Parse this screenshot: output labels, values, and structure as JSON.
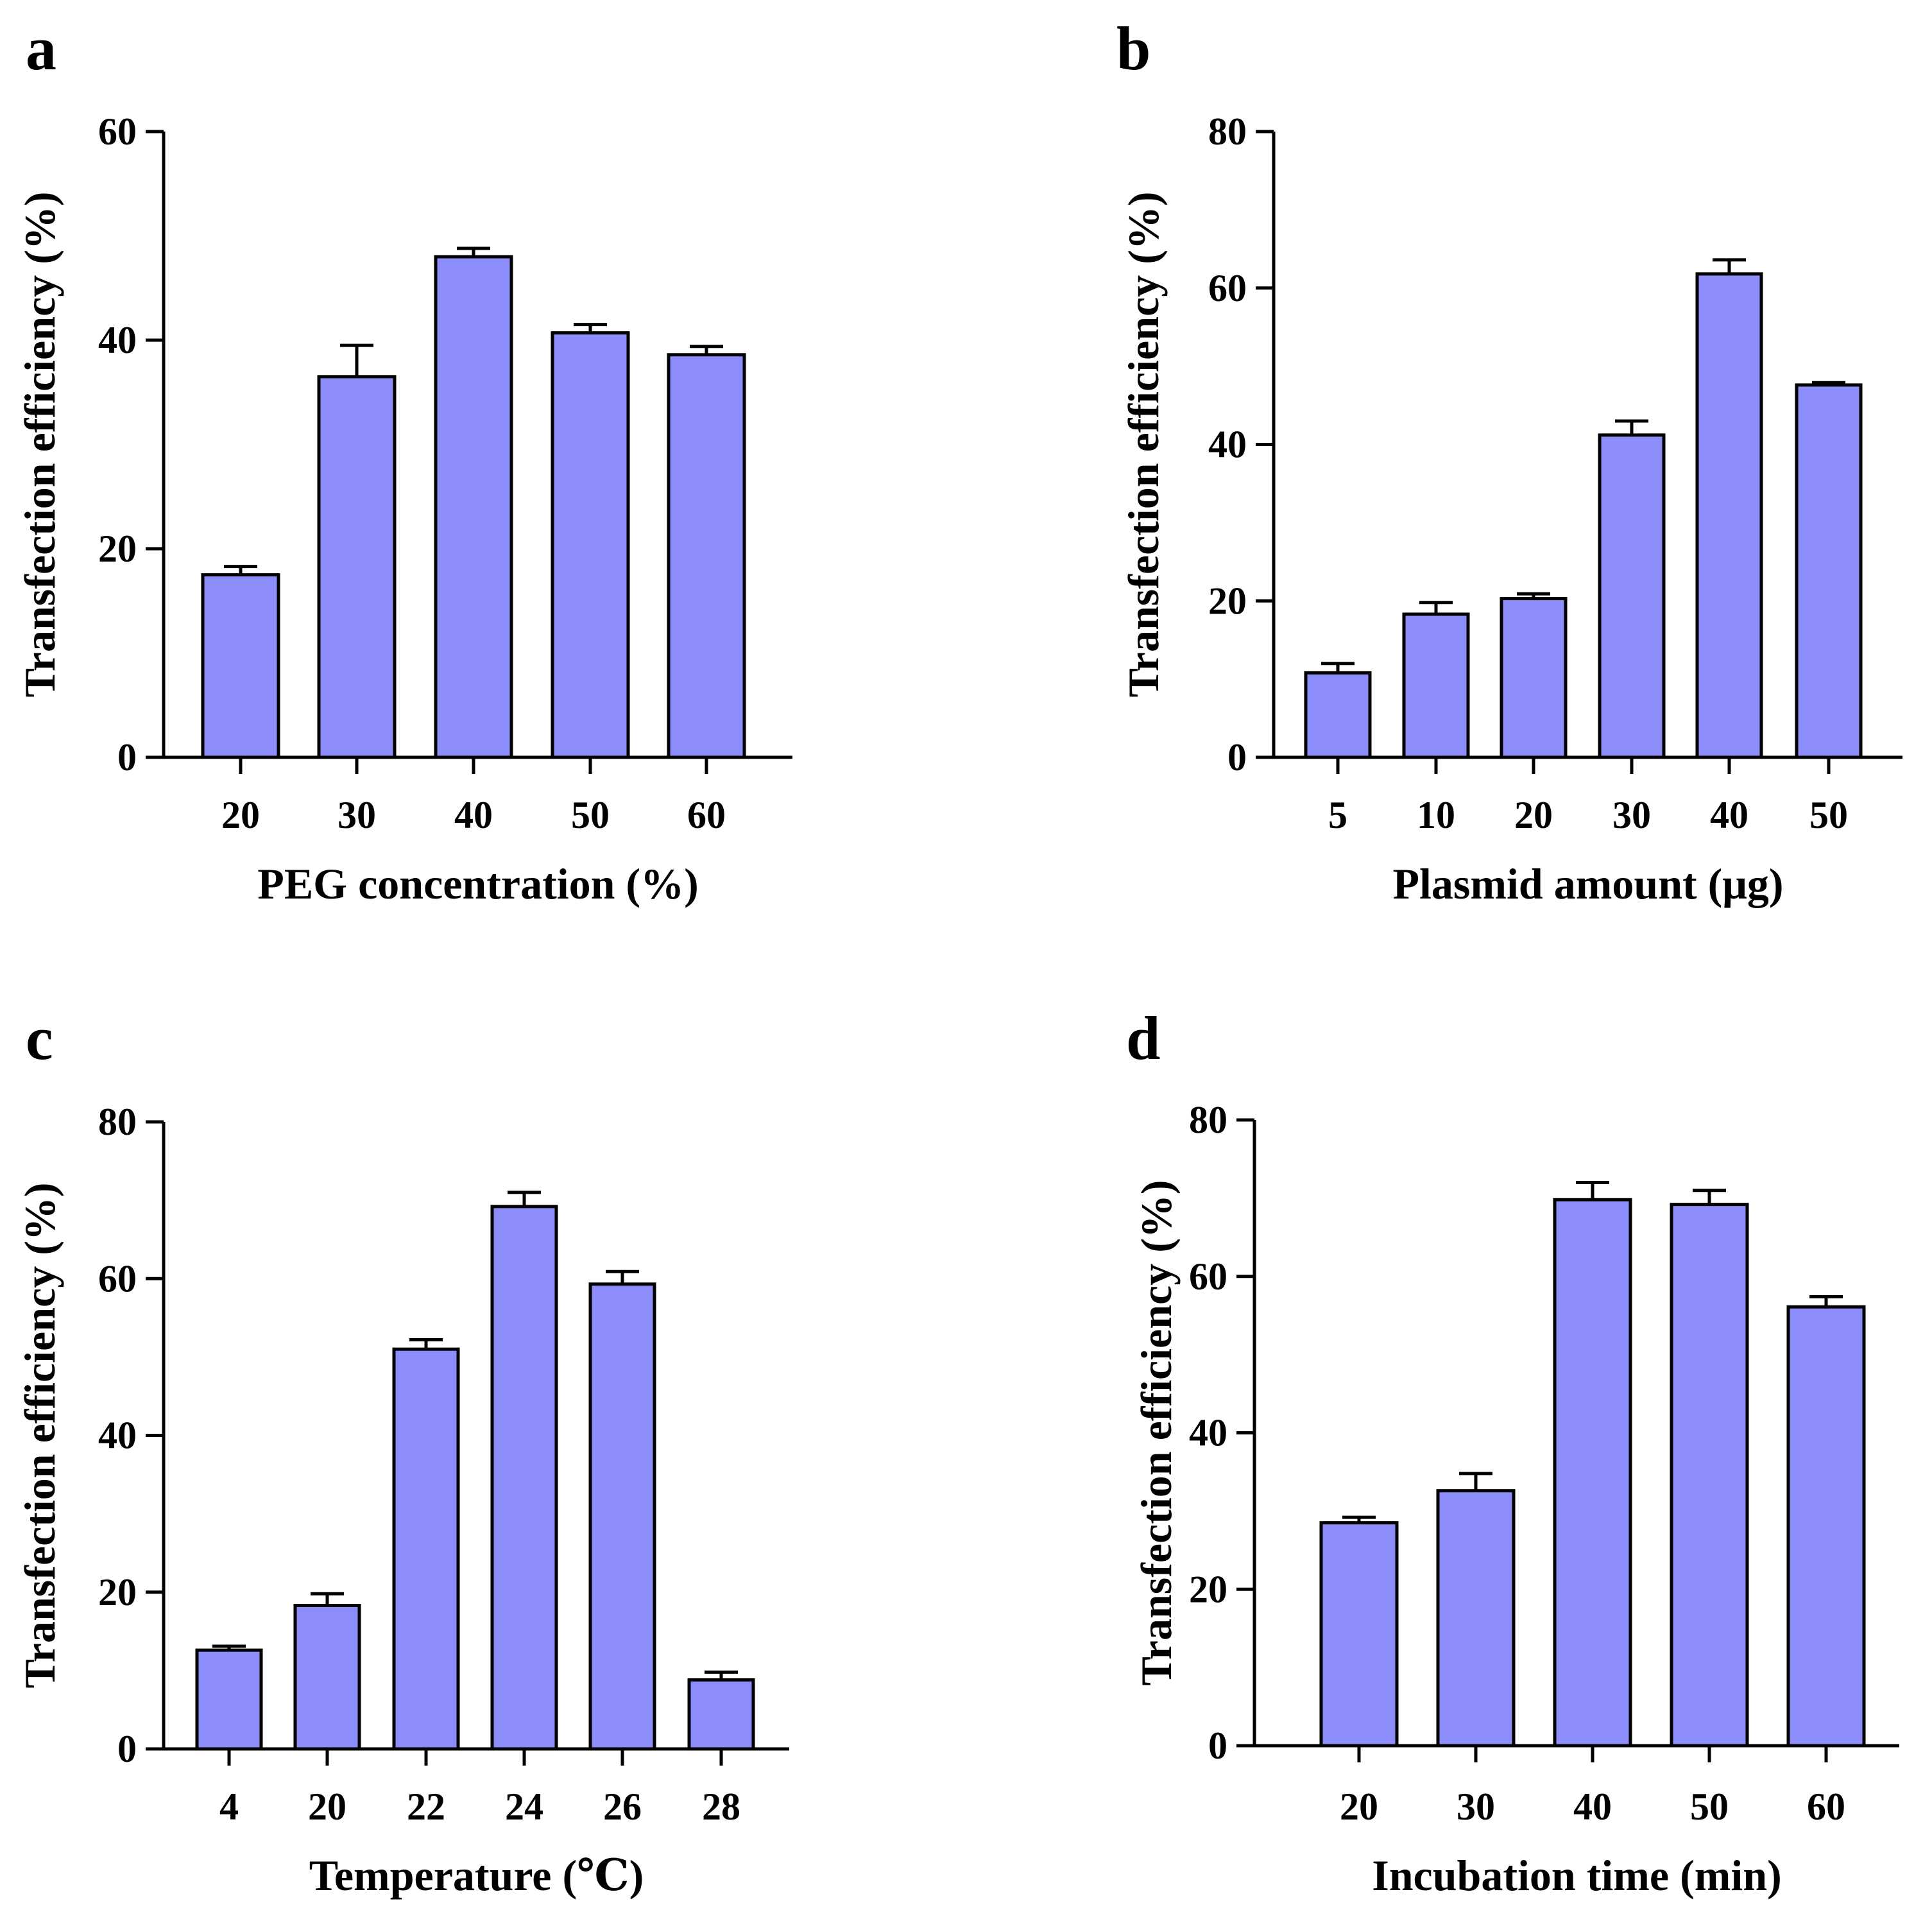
{
  "colors": {
    "bar_fill": "#8C8CFA",
    "bar_stroke": "#000000",
    "axis": "#000000"
  },
  "chart_data": [
    {
      "panel": "a",
      "type": "bar",
      "xlabel": "PEG concentration (%)",
      "ylabel": "Transfection efficiency (%)",
      "categories": [
        "20",
        "30",
        "40",
        "50",
        "60"
      ],
      "values": [
        17.5,
        36.5,
        48.0,
        40.7,
        38.6
      ],
      "errors": [
        0.8,
        3.0,
        0.8,
        0.8,
        0.8
      ],
      "ylim": [
        0,
        60
      ],
      "yticks": [
        "0",
        "20",
        "40",
        "60"
      ],
      "grid": false
    },
    {
      "panel": "b",
      "type": "bar",
      "xlabel": "Plasmid amount (μg)",
      "ylabel": "Transfection efficiency (%)",
      "categories": [
        "5",
        "10",
        "20",
        "30",
        "40",
        "50"
      ],
      "values": [
        10.8,
        18.3,
        20.3,
        41.2,
        61.8,
        47.6
      ],
      "errors": [
        1.2,
        1.5,
        0.6,
        1.8,
        1.8,
        0.3
      ],
      "ylim": [
        0,
        80
      ],
      "yticks": [
        "0",
        "20",
        "40",
        "60",
        "80"
      ],
      "grid": false
    },
    {
      "panel": "c",
      "type": "bar",
      "xlabel": "Temperature (℃)",
      "ylabel": "Transfection efficiency (%)",
      "categories": [
        "4",
        "20",
        "22",
        "24",
        "26",
        "28"
      ],
      "values": [
        12.6,
        18.3,
        51.0,
        69.2,
        59.3,
        8.8
      ],
      "errors": [
        0.5,
        1.5,
        1.2,
        1.8,
        1.6,
        1.0
      ],
      "ylim": [
        0,
        80
      ],
      "yticks": [
        "0",
        "20",
        "40",
        "60",
        "80"
      ],
      "grid": false
    },
    {
      "panel": "d",
      "type": "bar",
      "xlabel": "Incubation time (min)",
      "ylabel": "Transfection efficiency (%)",
      "categories": [
        "20",
        "30",
        "40",
        "50",
        "60"
      ],
      "values": [
        28.5,
        32.6,
        69.8,
        69.2,
        56.1
      ],
      "errors": [
        0.7,
        2.2,
        2.2,
        1.8,
        1.3
      ],
      "ylim": [
        0,
        80
      ],
      "yticks": [
        "0",
        "20",
        "40",
        "60",
        "80"
      ],
      "grid": false
    }
  ]
}
